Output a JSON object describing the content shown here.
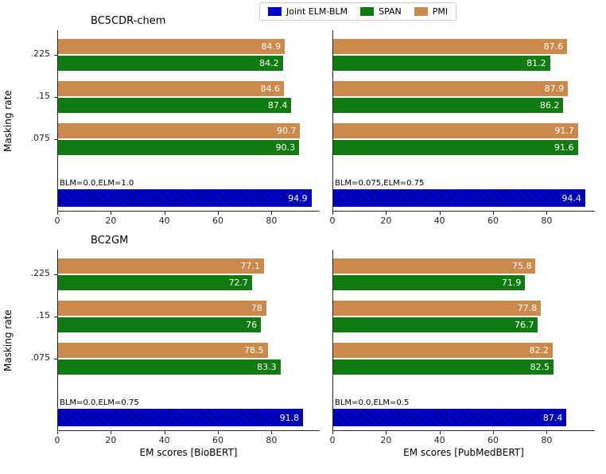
{
  "figure": {
    "legend": {
      "items": [
        {
          "label": "Joint ELM-BLM",
          "color": "#0000CC"
        },
        {
          "label": "SPAN",
          "color": "#117A11"
        },
        {
          "label": "PMI",
          "color": "#CB8A4C"
        }
      ]
    },
    "axis_color": "#262626"
  },
  "chart_data": [
    {
      "type": "bar",
      "orientation": "horizontal",
      "name": "bc5cdr-chem-biobert",
      "title": "BC5CDR-chem",
      "xlabel": "",
      "ylabel": "Masking rate",
      "show_yticks": true,
      "categories": [
        ".225",
        ".15",
        ".075"
      ],
      "series": [
        {
          "name": "PMI",
          "color": "#CB8A4C",
          "values": [
            84.9,
            84.6,
            90.7
          ]
        },
        {
          "name": "SPAN",
          "color": "#117A11",
          "values": [
            84.2,
            87.4,
            90.3
          ]
        }
      ],
      "joint": {
        "name": "Joint ELM-BLM",
        "color": "#0000CC",
        "value": 94.9,
        "annotation": "BLM=0.0,ELM=1.0"
      },
      "xlim": [
        0,
        98
      ],
      "xticks": [
        0,
        20,
        40,
        60,
        80
      ]
    },
    {
      "type": "bar",
      "orientation": "horizontal",
      "name": "bc5cdr-chem-pubmedbert",
      "title": "",
      "xlabel": "",
      "ylabel": "",
      "show_yticks": false,
      "categories": [
        ".225",
        ".15",
        ".075"
      ],
      "series": [
        {
          "name": "PMI",
          "color": "#CB8A4C",
          "values": [
            87.6,
            87.9,
            91.7
          ]
        },
        {
          "name": "SPAN",
          "color": "#117A11",
          "values": [
            81.2,
            86.2,
            91.6
          ]
        }
      ],
      "joint": {
        "name": "Joint ELM-BLM",
        "color": "#0000CC",
        "value": 94.4,
        "annotation": "BLM=0.075,ELM=0.75"
      },
      "xlim": [
        0,
        98
      ],
      "xticks": [
        0,
        20,
        40,
        60,
        80
      ]
    },
    {
      "type": "bar",
      "orientation": "horizontal",
      "name": "bc2gm-biobert",
      "title": "BC2GM",
      "xlabel": "EM scores [BioBERT]",
      "ylabel": "Masking rate",
      "show_yticks": true,
      "categories": [
        ".225",
        ".15",
        ".075"
      ],
      "series": [
        {
          "name": "PMI",
          "color": "#CB8A4C",
          "values": [
            77.1,
            78,
            78.5
          ]
        },
        {
          "name": "SPAN",
          "color": "#117A11",
          "values": [
            72.7,
            76,
            83.3
          ]
        }
      ],
      "joint": {
        "name": "Joint ELM-BLM",
        "color": "#0000CC",
        "value": 91.8,
        "annotation": "BLM=0.0,ELM=0.75"
      },
      "xlim": [
        0,
        98
      ],
      "xticks": [
        0,
        20,
        40,
        60,
        80
      ]
    },
    {
      "type": "bar",
      "orientation": "horizontal",
      "name": "bc2gm-pubmedbert",
      "title": "",
      "xlabel": "EM scores [PubMedBERT]",
      "ylabel": "",
      "show_yticks": false,
      "categories": [
        ".225",
        ".15",
        ".075"
      ],
      "series": [
        {
          "name": "PMI",
          "color": "#CB8A4C",
          "values": [
            75.8,
            77.8,
            82.2
          ]
        },
        {
          "name": "SPAN",
          "color": "#117A11",
          "values": [
            71.9,
            76.7,
            82.5
          ]
        }
      ],
      "joint": {
        "name": "Joint ELM-BLM",
        "color": "#0000CC",
        "value": 87.4,
        "annotation": "BLM=0.0,ELM=0.5"
      },
      "xlim": [
        0,
        98
      ],
      "xticks": [
        0,
        20,
        40,
        60,
        80
      ]
    }
  ]
}
